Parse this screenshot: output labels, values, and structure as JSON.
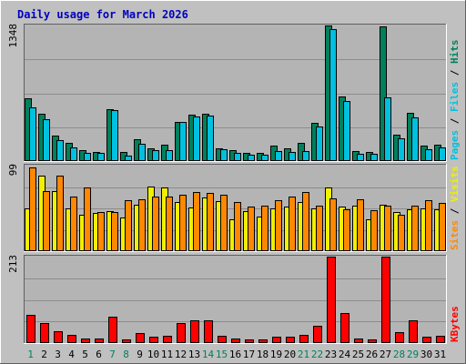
{
  "page": {
    "title": "Daily usage for March 2026"
  },
  "colors": {
    "background": "#c0c0c0",
    "panel": "#b4b4b4",
    "title": "#0000c0",
    "hits": "#00805c",
    "files": "#00c0e0",
    "pages": "#00c0e0",
    "visits": "#f0f000",
    "sites": "#ff8800",
    "kbytes": "#ff0000",
    "weekday_label": "#000000",
    "weekend_label": "#00805c"
  },
  "chart_data": [
    {
      "type": "bar",
      "panel": "hits-files-pages",
      "ymax_label": "1348",
      "ylim": [
        0,
        1348
      ],
      "grid": true,
      "right_label": [
        "Pages",
        "Files",
        "Hits"
      ],
      "right_label_sep": " / ",
      "categories": [
        "1",
        "2",
        "3",
        "4",
        "5",
        "6",
        "7",
        "8",
        "9",
        "10",
        "11",
        "12",
        "13",
        "14",
        "15",
        "16",
        "17",
        "18",
        "19",
        "20",
        "21",
        "22",
        "23",
        "24",
        "25",
        "26",
        "27",
        "28",
        "29",
        "30",
        "31"
      ],
      "series": [
        {
          "name": "Hits",
          "values": [
            620,
            470,
            250,
            180,
            110,
            90,
            520,
            90,
            220,
            130,
            160,
            390,
            460,
            470,
            130,
            110,
            80,
            80,
            150,
            130,
            180,
            380,
            1348,
            640,
            100,
            90,
            1340,
            260,
            480,
            150,
            160
          ]
        },
        {
          "name": "Files",
          "values": [
            530,
            420,
            210,
            140,
            80,
            80,
            510,
            50,
            170,
            110,
            110,
            390,
            440,
            450,
            120,
            80,
            60,
            60,
            100,
            90,
            100,
            340,
            1310,
            600,
            70,
            70,
            630,
            230,
            430,
            120,
            140
          ]
        },
        {
          "name": "Pages",
          "values": [
            0,
            0,
            0,
            0,
            0,
            0,
            0,
            0,
            0,
            0,
            0,
            0,
            0,
            0,
            0,
            0,
            0,
            0,
            0,
            0,
            0,
            0,
            0,
            0,
            0,
            0,
            0,
            0,
            0,
            0,
            0
          ]
        }
      ]
    },
    {
      "type": "bar",
      "panel": "visits-sites",
      "ymax_label": "99",
      "ylim": [
        0,
        99
      ],
      "grid": true,
      "right_label": [
        "Sites",
        "Visits"
      ],
      "right_label_sep": " / ",
      "categories": [
        "1",
        "2",
        "3",
        "4",
        "5",
        "6",
        "7",
        "8",
        "9",
        "10",
        "11",
        "12",
        "13",
        "14",
        "15",
        "16",
        "17",
        "18",
        "19",
        "20",
        "21",
        "22",
        "23",
        "24",
        "25",
        "26",
        "27",
        "28",
        "29",
        "30",
        "31"
      ],
      "series": [
        {
          "name": "Visits",
          "values": [
            49,
            87,
            70,
            50,
            42,
            44,
            46,
            39,
            54,
            75,
            74,
            57,
            51,
            62,
            58,
            37,
            46,
            40,
            49,
            52,
            57,
            50,
            74,
            52,
            53,
            37,
            54,
            45,
            48,
            49,
            48
          ]
        },
        {
          "name": "Sites",
          "values": [
            97,
            70,
            87,
            63,
            74,
            45,
            45,
            59,
            60,
            63,
            63,
            65,
            68,
            67,
            65,
            57,
            52,
            53,
            59,
            63,
            68,
            53,
            61,
            48,
            60,
            47,
            53,
            42,
            53,
            59,
            56
          ]
        }
      ]
    },
    {
      "type": "bar",
      "panel": "kbytes",
      "ymax_label": "213",
      "ylim": [
        0,
        213
      ],
      "grid": true,
      "right_label": [
        "KBytes"
      ],
      "categories": [
        "1",
        "2",
        "3",
        "4",
        "5",
        "6",
        "7",
        "8",
        "9",
        "10",
        "11",
        "12",
        "13",
        "14",
        "15",
        "16",
        "17",
        "18",
        "19",
        "20",
        "21",
        "22",
        "23",
        "24",
        "25",
        "26",
        "27",
        "28",
        "29",
        "30",
        "31"
      ],
      "weekend_days": [
        1,
        7,
        8,
        14,
        15,
        21,
        22,
        28,
        29
      ],
      "series": [
        {
          "name": "KBytes",
          "values": [
            70,
            50,
            30,
            20,
            12,
            12,
            64,
            8,
            25,
            15,
            18,
            50,
            57,
            55,
            17,
            12,
            10,
            10,
            15,
            15,
            20,
            43,
            213,
            73,
            12,
            10,
            213,
            28,
            55,
            16,
            17
          ]
        }
      ]
    }
  ]
}
